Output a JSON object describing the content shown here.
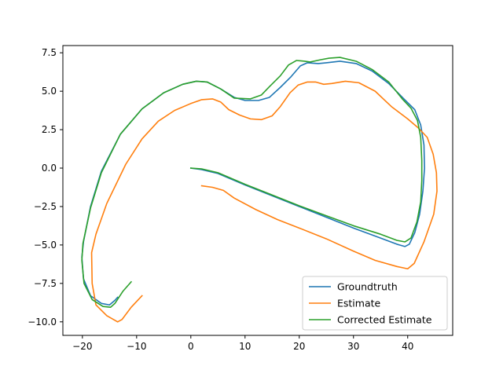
{
  "chart_data": {
    "type": "line",
    "title": "",
    "xlabel": "",
    "ylabel": "",
    "xlim": [
      -23.6,
      48.3
    ],
    "ylim": [
      -10.88,
      7.97
    ],
    "xticks": [
      -20,
      -10,
      0,
      10,
      20,
      30,
      40
    ],
    "yticks": [
      -10.0,
      -7.5,
      -5.0,
      -2.5,
      0.0,
      2.5,
      5.0,
      7.5
    ],
    "xtick_labels": [
      "−20",
      "−10",
      "0",
      "10",
      "20",
      "30",
      "40"
    ],
    "ytick_labels": [
      "−10.0",
      "−7.5",
      "−5.0",
      "−2.5",
      "0.0",
      "2.5",
      "5.0",
      "7.5"
    ],
    "grid": false,
    "legend_position": "lower-right",
    "series": [
      {
        "name": "Groundtruth",
        "color": "#1f77b4",
        "points": [
          [
            0,
            0
          ],
          [
            2,
            -0.1
          ],
          [
            5,
            -0.35
          ],
          [
            10,
            -1.1
          ],
          [
            15,
            -1.8
          ],
          [
            20,
            -2.5
          ],
          [
            25,
            -3.2
          ],
          [
            30,
            -3.9
          ],
          [
            35,
            -4.55
          ],
          [
            38,
            -4.95
          ],
          [
            39.5,
            -5.1
          ],
          [
            40.3,
            -4.95
          ],
          [
            41.3,
            -4.2
          ],
          [
            42.2,
            -3.0
          ],
          [
            42.8,
            -1.5
          ],
          [
            43.1,
            0.0
          ],
          [
            43.0,
            1.5
          ],
          [
            42.4,
            2.8
          ],
          [
            41.3,
            3.8
          ],
          [
            39.3,
            4.5
          ],
          [
            36.5,
            5.5
          ],
          [
            33.5,
            6.3
          ],
          [
            30.5,
            6.8
          ],
          [
            27.5,
            6.95
          ],
          [
            25,
            6.85
          ],
          [
            23.5,
            6.8
          ],
          [
            21.5,
            6.85
          ],
          [
            20.2,
            6.65
          ],
          [
            18.5,
            5.95
          ],
          [
            16.5,
            5.25
          ],
          [
            14.5,
            4.6
          ],
          [
            12.5,
            4.4
          ],
          [
            10,
            4.4
          ],
          [
            8,
            4.6
          ],
          [
            5.5,
            5.15
          ],
          [
            3,
            5.6
          ],
          [
            1,
            5.65
          ],
          [
            -1.5,
            5.45
          ],
          [
            -5,
            4.9
          ],
          [
            -9,
            3.85
          ],
          [
            -13,
            2.2
          ],
          [
            -16.5,
            -0.2
          ],
          [
            -18.5,
            -2.5
          ],
          [
            -19.8,
            -4.8
          ],
          [
            -20.1,
            -5.8
          ],
          [
            -19.8,
            -7.2
          ],
          [
            -18.5,
            -8.3
          ],
          [
            -16.5,
            -8.8
          ],
          [
            -15,
            -8.9
          ],
          [
            -14,
            -8.6
          ],
          [
            -13.5,
            -8.4
          ]
        ]
      },
      {
        "name": "Estimate",
        "color": "#ff7f0e",
        "points": [
          [
            2,
            -1.15
          ],
          [
            4,
            -1.25
          ],
          [
            6,
            -1.45
          ],
          [
            8,
            -1.95
          ],
          [
            12,
            -2.7
          ],
          [
            16,
            -3.35
          ],
          [
            20,
            -3.9
          ],
          [
            25,
            -4.6
          ],
          [
            30,
            -5.4
          ],
          [
            34,
            -6.0
          ],
          [
            38,
            -6.4
          ],
          [
            40,
            -6.55
          ],
          [
            41.2,
            -6.2
          ],
          [
            43,
            -4.8
          ],
          [
            44.8,
            -3.0
          ],
          [
            45.4,
            -1.5
          ],
          [
            45.3,
            -0.3
          ],
          [
            44.7,
            0.9
          ],
          [
            43.6,
            2.0
          ],
          [
            42,
            2.6
          ],
          [
            40,
            3.2
          ],
          [
            37,
            4.0
          ],
          [
            34,
            5.0
          ],
          [
            31,
            5.55
          ],
          [
            28.5,
            5.65
          ],
          [
            26,
            5.5
          ],
          [
            24.5,
            5.45
          ],
          [
            23,
            5.6
          ],
          [
            21.5,
            5.6
          ],
          [
            19.8,
            5.4
          ],
          [
            18.3,
            4.9
          ],
          [
            16.5,
            4.0
          ],
          [
            15,
            3.4
          ],
          [
            13,
            3.15
          ],
          [
            11,
            3.2
          ],
          [
            9,
            3.45
          ],
          [
            7,
            3.8
          ],
          [
            5.5,
            4.3
          ],
          [
            4,
            4.5
          ],
          [
            2,
            4.45
          ],
          [
            0,
            4.2
          ],
          [
            -3,
            3.75
          ],
          [
            -6,
            3.05
          ],
          [
            -9,
            1.9
          ],
          [
            -12,
            0.25
          ],
          [
            -15.5,
            -2.3
          ],
          [
            -17.5,
            -4.3
          ],
          [
            -18.3,
            -5.5
          ],
          [
            -18.2,
            -7.5
          ],
          [
            -17.5,
            -8.9
          ],
          [
            -15.5,
            -9.6
          ],
          [
            -13.5,
            -10.0
          ],
          [
            -12.7,
            -9.85
          ],
          [
            -11,
            -9.05
          ],
          [
            -9,
            -8.3
          ]
        ]
      },
      {
        "name": "Corrected Estimate",
        "color": "#2ca02c",
        "points": [
          [
            0,
            0
          ],
          [
            2,
            -0.05
          ],
          [
            5,
            -0.3
          ],
          [
            10,
            -1.05
          ],
          [
            15,
            -1.75
          ],
          [
            20,
            -2.45
          ],
          [
            25,
            -3.1
          ],
          [
            30,
            -3.75
          ],
          [
            35,
            -4.3
          ],
          [
            38,
            -4.7
          ],
          [
            39.5,
            -4.8
          ],
          [
            40.6,
            -4.55
          ],
          [
            41.7,
            -3.5
          ],
          [
            42.4,
            -2.2
          ],
          [
            42.6,
            -0.8
          ],
          [
            42.6,
            0.5
          ],
          [
            42.4,
            2.0
          ],
          [
            41.8,
            3.1
          ],
          [
            40.6,
            3.9
          ],
          [
            39.0,
            4.5
          ],
          [
            36.5,
            5.6
          ],
          [
            33.5,
            6.4
          ],
          [
            30.5,
            6.95
          ],
          [
            27.5,
            7.2
          ],
          [
            25.5,
            7.15
          ],
          [
            24,
            7.05
          ],
          [
            22,
            6.9
          ],
          [
            21,
            6.95
          ],
          [
            19.5,
            7.0
          ],
          [
            18,
            6.7
          ],
          [
            16.5,
            6.0
          ],
          [
            14.5,
            5.3
          ],
          [
            13,
            4.75
          ],
          [
            11,
            4.5
          ],
          [
            8,
            4.55
          ],
          [
            5.5,
            5.15
          ],
          [
            3,
            5.6
          ],
          [
            1,
            5.65
          ],
          [
            -1.5,
            5.45
          ],
          [
            -5,
            4.9
          ],
          [
            -9,
            3.85
          ],
          [
            -13,
            2.2
          ],
          [
            -16.5,
            -0.3
          ],
          [
            -18.5,
            -2.6
          ],
          [
            -19.9,
            -4.9
          ],
          [
            -20.1,
            -6.0
          ],
          [
            -19.7,
            -7.5
          ],
          [
            -18.2,
            -8.55
          ],
          [
            -16.2,
            -9.0
          ],
          [
            -14.8,
            -9.05
          ],
          [
            -14,
            -8.8
          ],
          [
            -12.5,
            -8.0
          ],
          [
            -11,
            -7.4
          ]
        ]
      }
    ]
  }
}
